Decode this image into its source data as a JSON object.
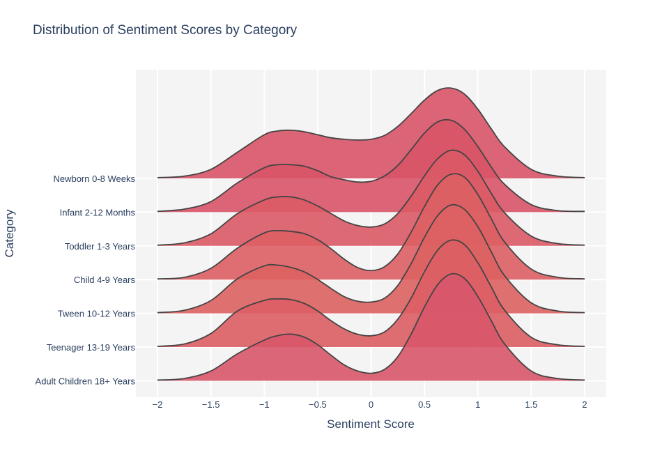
{
  "chart_data": {
    "type": "ridgeline",
    "title": "Distribution of Sentiment Scores by Category",
    "xlabel": "Sentiment Score",
    "ylabel": "Category",
    "xlim": [
      -2,
      2
    ],
    "x_ticks": [
      -2,
      -1.5,
      -1,
      -0.5,
      0,
      0.5,
      1,
      1.5,
      2
    ],
    "x_tick_labels": [
      "−2",
      "−1.5",
      "−1",
      "−0.5",
      "0",
      "0.5",
      "1",
      "1.5",
      "2"
    ],
    "grid": true,
    "series": [
      {
        "name": "Newborn 0-8 Weeks",
        "color": "#d85468",
        "x": [
          -2,
          -1.75,
          -1.5,
          -1.25,
          -1,
          -0.875,
          -0.75,
          -0.625,
          -0.5,
          -0.375,
          -0.25,
          -0.125,
          0,
          0.125,
          0.25,
          0.375,
          0.5,
          0.625,
          0.75,
          0.875,
          1,
          1.125,
          1.25,
          1.5,
          1.75,
          2
        ],
        "y": [
          0.01,
          0.03,
          0.12,
          0.35,
          0.58,
          0.63,
          0.64,
          0.62,
          0.58,
          0.54,
          0.52,
          0.51,
          0.52,
          0.57,
          0.69,
          0.86,
          1.04,
          1.17,
          1.2,
          1.12,
          0.92,
          0.66,
          0.42,
          0.12,
          0.03,
          0.01
        ]
      },
      {
        "name": "Infant 2-12 Months",
        "color": "#d85468",
        "x": [
          -2,
          -1.75,
          -1.5,
          -1.25,
          -1,
          -0.875,
          -0.75,
          -0.625,
          -0.5,
          -0.375,
          -0.25,
          -0.125,
          0,
          0.125,
          0.25,
          0.375,
          0.5,
          0.625,
          0.75,
          0.875,
          1,
          1.125,
          1.25,
          1.5,
          1.75,
          2
        ],
        "y": [
          0.01,
          0.04,
          0.14,
          0.39,
          0.59,
          0.63,
          0.63,
          0.61,
          0.55,
          0.47,
          0.43,
          0.4,
          0.41,
          0.48,
          0.62,
          0.83,
          1.05,
          1.2,
          1.22,
          1.1,
          0.87,
          0.6,
          0.37,
          0.1,
          0.02,
          0.01
        ]
      },
      {
        "name": "Toddler 1-3 Years",
        "color": "#da5a66",
        "x": [
          -2,
          -1.75,
          -1.5,
          -1.25,
          -1,
          -0.875,
          -0.75,
          -0.625,
          -0.5,
          -0.375,
          -0.25,
          -0.125,
          0,
          0.125,
          0.25,
          0.375,
          0.5,
          0.625,
          0.75,
          0.875,
          1,
          1.125,
          1.25,
          1.5,
          1.75,
          2
        ],
        "y": [
          0.01,
          0.04,
          0.16,
          0.43,
          0.61,
          0.65,
          0.65,
          0.61,
          0.53,
          0.43,
          0.33,
          0.27,
          0.25,
          0.29,
          0.43,
          0.66,
          0.93,
          1.16,
          1.27,
          1.21,
          0.99,
          0.7,
          0.44,
          0.13,
          0.03,
          0.01
        ]
      },
      {
        "name": "Child 4-9 Years",
        "color": "#dc5f63",
        "x": [
          -2,
          -1.75,
          -1.5,
          -1.25,
          -1,
          -0.875,
          -0.75,
          -0.625,
          -0.5,
          -0.375,
          -0.25,
          -0.125,
          0,
          0.125,
          0.25,
          0.375,
          0.5,
          0.625,
          0.75,
          0.875,
          1,
          1.125,
          1.25,
          1.5,
          1.75,
          2
        ],
        "y": [
          0.01,
          0.03,
          0.15,
          0.42,
          0.62,
          0.65,
          0.64,
          0.61,
          0.53,
          0.41,
          0.27,
          0.16,
          0.12,
          0.17,
          0.34,
          0.63,
          0.97,
          1.26,
          1.4,
          1.36,
          1.13,
          0.81,
          0.5,
          0.14,
          0.03,
          0.01
        ]
      },
      {
        "name": "Tween 10-12 Years",
        "color": "#dd6262",
        "x": [
          -2,
          -1.75,
          -1.5,
          -1.25,
          -1,
          -0.875,
          -0.75,
          -0.625,
          -0.5,
          -0.375,
          -0.25,
          -0.125,
          0,
          0.125,
          0.25,
          0.375,
          0.5,
          0.625,
          0.75,
          0.875,
          1,
          1.125,
          1.25,
          1.5,
          1.75,
          2
        ],
        "y": [
          0.01,
          0.04,
          0.17,
          0.46,
          0.63,
          0.64,
          0.61,
          0.55,
          0.45,
          0.33,
          0.22,
          0.16,
          0.15,
          0.2,
          0.37,
          0.66,
          1.01,
          1.3,
          1.44,
          1.38,
          1.15,
          0.82,
          0.5,
          0.14,
          0.03,
          0.01
        ]
      },
      {
        "name": "Teenager 13-19 Years",
        "color": "#dc5e64",
        "x": [
          -2,
          -1.75,
          -1.5,
          -1.25,
          -1,
          -0.875,
          -0.75,
          -0.625,
          -0.5,
          -0.375,
          -0.25,
          -0.125,
          0,
          0.125,
          0.25,
          0.375,
          0.5,
          0.625,
          0.75,
          0.875,
          1,
          1.125,
          1.25,
          1.5,
          1.75,
          2
        ],
        "y": [
          0.01,
          0.04,
          0.18,
          0.48,
          0.62,
          0.64,
          0.63,
          0.58,
          0.48,
          0.35,
          0.24,
          0.17,
          0.15,
          0.2,
          0.37,
          0.65,
          1.0,
          1.29,
          1.42,
          1.36,
          1.12,
          0.8,
          0.49,
          0.13,
          0.03,
          0.01
        ]
      },
      {
        "name": "Adult Children 18+ Years",
        "color": "#d8566a",
        "x": [
          -2,
          -1.75,
          -1.5,
          -1.25,
          -1,
          -0.875,
          -0.75,
          -0.625,
          -0.5,
          -0.375,
          -0.25,
          -0.125,
          0,
          0.125,
          0.25,
          0.375,
          0.5,
          0.625,
          0.75,
          0.875,
          1,
          1.125,
          1.25,
          1.5,
          1.75,
          2
        ],
        "y": [
          0.01,
          0.03,
          0.13,
          0.36,
          0.54,
          0.6,
          0.62,
          0.58,
          0.48,
          0.34,
          0.21,
          0.13,
          0.1,
          0.15,
          0.32,
          0.62,
          0.98,
          1.28,
          1.42,
          1.36,
          1.12,
          0.8,
          0.49,
          0.13,
          0.03,
          0.01
        ]
      }
    ]
  }
}
